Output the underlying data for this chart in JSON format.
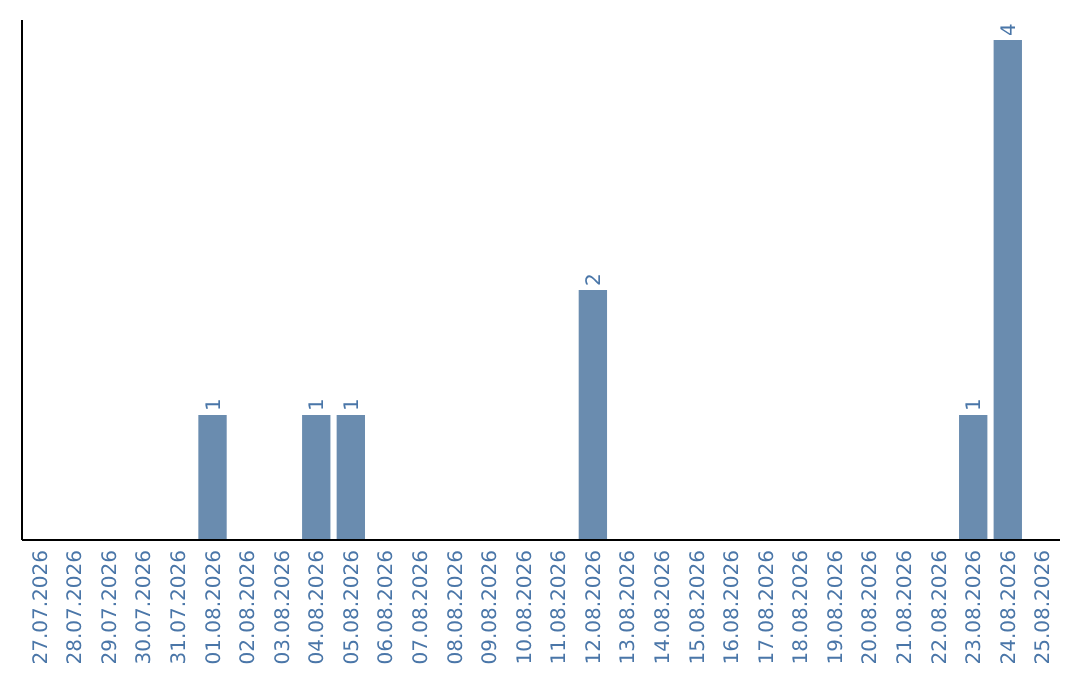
{
  "chart_data": {
    "type": "bar",
    "categories": [
      "27.07.2026",
      "28.07.2026",
      "29.07.2026",
      "30.07.2026",
      "31.07.2026",
      "01.08.2026",
      "02.08.2026",
      "03.08.2026",
      "04.08.2026",
      "05.08.2026",
      "06.08.2026",
      "07.08.2026",
      "08.08.2026",
      "09.08.2026",
      "10.08.2026",
      "11.08.2026",
      "12.08.2026",
      "13.08.2026",
      "14.08.2026",
      "15.08.2026",
      "16.08.2026",
      "17.08.2026",
      "18.08.2026",
      "19.08.2026",
      "20.08.2026",
      "21.08.2026",
      "22.08.2026",
      "23.08.2026",
      "24.08.2026",
      "25.08.2026"
    ],
    "values": [
      0,
      0,
      0,
      0,
      0,
      1,
      0,
      0,
      1,
      1,
      0,
      0,
      0,
      0,
      0,
      0,
      2,
      0,
      0,
      0,
      0,
      0,
      0,
      0,
      0,
      0,
      0,
      1,
      4,
      0
    ],
    "value_labels": [
      null,
      null,
      null,
      null,
      null,
      "1",
      null,
      null,
      "1",
      "1",
      null,
      null,
      null,
      null,
      null,
      null,
      "2",
      null,
      null,
      null,
      null,
      null,
      null,
      null,
      null,
      null,
      null,
      "1",
      "4",
      null
    ],
    "color": "#6a8caf",
    "ylim": [
      0,
      4.16
    ],
    "tick_labels": "x"
  }
}
